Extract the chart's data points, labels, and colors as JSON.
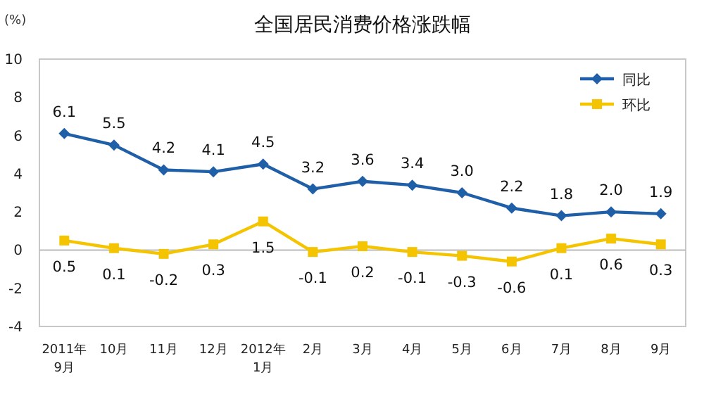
{
  "chart_data": {
    "type": "line",
    "title": "全国居民消费价格涨跌幅",
    "ylabel": "(%)",
    "categories": [
      "2011年\n9月",
      "10月",
      "11月",
      "12月",
      "2012年\n1月",
      "2月",
      "3月",
      "4月",
      "5月",
      "6月",
      "7月",
      "8月",
      "9月"
    ],
    "series": [
      {
        "name": "同比",
        "color": "#1f5fa8",
        "marker": "diamond",
        "values": [
          6.1,
          5.5,
          4.2,
          4.1,
          4.5,
          3.2,
          3.6,
          3.4,
          3.0,
          2.2,
          1.8,
          2.0,
          1.9
        ],
        "value_labels": [
          "6.1",
          "5.5",
          "4.2",
          "4.1",
          "4.5",
          "3.2",
          "3.6",
          "3.4",
          "3.0",
          "2.2",
          "1.8",
          "2.0",
          "1.9"
        ]
      },
      {
        "name": "环比",
        "color": "#f5c400",
        "marker": "square",
        "values": [
          0.5,
          0.1,
          -0.2,
          0.3,
          1.5,
          -0.1,
          0.2,
          -0.1,
          -0.3,
          -0.6,
          0.1,
          0.6,
          0.3
        ],
        "value_labels": [
          "0.5",
          "0.1",
          "-0.2",
          "0.3",
          "1.5",
          "-0.1",
          "0.2",
          "-0.1",
          "-0.3",
          "-0.6",
          "0.1",
          "0.6",
          "0.3"
        ]
      }
    ],
    "ylim": [
      -4,
      10
    ],
    "yticks": [
      -4,
      -2,
      0,
      2,
      4,
      6,
      8,
      10
    ],
    "legend": "top right",
    "line_style": "solid"
  }
}
